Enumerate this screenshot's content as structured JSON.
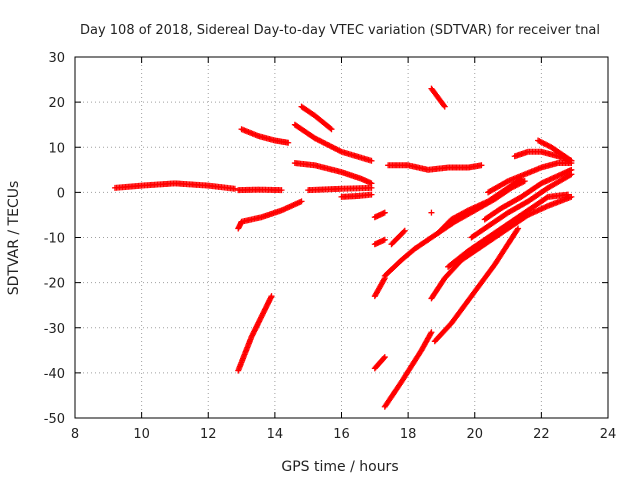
{
  "chart_data": {
    "type": "scatter",
    "title": "Day 108 of 2018, Sidereal Day-to-day VTEC variation (SDTVAR) for receiver tnal",
    "xlabel": "GPS time / hours",
    "ylabel": "SDTVAR / TECUs",
    "xlim": [
      8,
      24
    ],
    "ylim": [
      -50,
      30
    ],
    "xticks": [
      "8",
      "10",
      "12",
      "14",
      "16",
      "18",
      "20",
      "22",
      "24"
    ],
    "yticks": [
      "30",
      "20",
      "10",
      "0",
      "-10",
      "-20",
      "-30",
      "-40",
      "-50"
    ],
    "grid": true,
    "legend": "none",
    "marker": "plus",
    "color": "#ff0000",
    "series": [
      {
        "points": [
          [
            9.2,
            1.0
          ],
          [
            10.0,
            1.5
          ],
          [
            11.0,
            2.0
          ],
          [
            12.0,
            1.5
          ],
          [
            12.8,
            0.8
          ]
        ]
      },
      {
        "points": [
          [
            12.9,
            0.5
          ],
          [
            13.5,
            0.6
          ],
          [
            14.2,
            0.5
          ]
        ]
      },
      {
        "points": [
          [
            12.9,
            -8.0
          ],
          [
            13.0,
            -6.5
          ],
          [
            13.6,
            -5.5
          ],
          [
            14.2,
            -4.0
          ],
          [
            14.8,
            -2.0
          ]
        ]
      },
      {
        "points": [
          [
            13.0,
            14.0
          ],
          [
            13.5,
            12.5
          ],
          [
            14.0,
            11.5
          ],
          [
            14.4,
            11.0
          ]
        ]
      },
      {
        "points": [
          [
            14.6,
            15.0
          ],
          [
            15.2,
            12.0
          ],
          [
            16.0,
            9.0
          ],
          [
            16.9,
            7.0
          ]
        ]
      },
      {
        "points": [
          [
            14.8,
            19.0
          ],
          [
            15.2,
            17.0
          ],
          [
            15.7,
            14.0
          ]
        ]
      },
      {
        "points": [
          [
            14.6,
            6.5
          ],
          [
            15.2,
            6.0
          ],
          [
            16.0,
            4.5
          ],
          [
            16.6,
            3.0
          ],
          [
            16.9,
            2.0
          ]
        ]
      },
      {
        "points": [
          [
            15.0,
            0.5
          ],
          [
            16.0,
            0.8
          ],
          [
            16.9,
            1.0
          ]
        ]
      },
      {
        "points": [
          [
            16.0,
            -1.0
          ],
          [
            16.5,
            -0.8
          ],
          [
            16.9,
            -0.5
          ]
        ]
      },
      {
        "points": [
          [
            17.4,
            6.0
          ],
          [
            18.0,
            6.0
          ],
          [
            18.6,
            5.0
          ],
          [
            19.2,
            5.5
          ],
          [
            19.8,
            5.5
          ],
          [
            20.2,
            6.0
          ]
        ]
      },
      {
        "points": [
          [
            18.7,
            23.0
          ],
          [
            19.1,
            19.0
          ]
        ]
      },
      {
        "points": [
          [
            12.9,
            -39.5
          ],
          [
            13.3,
            -32.0
          ],
          [
            13.7,
            -26.0
          ],
          [
            13.9,
            -23.0
          ]
        ]
      },
      {
        "points": [
          [
            17.0,
            -23.0
          ],
          [
            17.3,
            -19.0
          ]
        ]
      },
      {
        "points": [
          [
            17.0,
            -39.0
          ],
          [
            17.3,
            -36.5
          ]
        ]
      },
      {
        "points": [
          [
            17.0,
            -5.5
          ],
          [
            17.3,
            -4.5
          ]
        ]
      },
      {
        "points": [
          [
            17.0,
            -11.5
          ],
          [
            17.3,
            -10.5
          ]
        ]
      },
      {
        "points": [
          [
            17.5,
            -11.5
          ],
          [
            17.9,
            -8.5
          ]
        ]
      },
      {
        "points": [
          [
            17.3,
            -47.5
          ],
          [
            17.8,
            -42.0
          ],
          [
            18.4,
            -35.0
          ],
          [
            18.7,
            -31.0
          ]
        ]
      },
      {
        "points": [
          [
            17.3,
            -18.5
          ],
          [
            17.8,
            -15.0
          ],
          [
            18.2,
            -12.5
          ],
          [
            18.6,
            -10.5
          ]
        ]
      },
      {
        "points": [
          [
            18.6,
            -10.5
          ],
          [
            19.0,
            -8.5
          ],
          [
            19.4,
            -6.5
          ],
          [
            20.0,
            -4.0
          ],
          [
            20.6,
            -1.5
          ],
          [
            21.1,
            1.0
          ],
          [
            21.5,
            2.5
          ]
        ]
      },
      {
        "points": [
          [
            18.9,
            -9.0
          ],
          [
            19.3,
            -6.0
          ],
          [
            19.8,
            -4.0
          ],
          [
            20.4,
            -2.0
          ],
          [
            21.0,
            1.0
          ],
          [
            21.4,
            3.0
          ]
        ]
      },
      {
        "points": [
          [
            18.7,
            -23.5
          ],
          [
            19.1,
            -19.0
          ],
          [
            19.6,
            -15.0
          ],
          [
            20.2,
            -12.0
          ],
          [
            21.0,
            -8.0
          ],
          [
            21.6,
            -5.0
          ],
          [
            22.2,
            -3.0
          ],
          [
            22.9,
            -1.0
          ]
        ]
      },
      {
        "points": [
          [
            18.8,
            -33.0
          ],
          [
            19.3,
            -29.0
          ],
          [
            19.9,
            -23.0
          ],
          [
            20.6,
            -16.0
          ],
          [
            21.3,
            -8.0
          ]
        ]
      },
      {
        "points": [
          [
            19.2,
            -16.5
          ],
          [
            19.8,
            -13.0
          ],
          [
            20.4,
            -10.0
          ],
          [
            21.0,
            -7.0
          ],
          [
            21.6,
            -4.0
          ],
          [
            22.2,
            -1.0
          ],
          [
            22.8,
            -0.5
          ]
        ]
      },
      {
        "points": [
          [
            19.9,
            -10.0
          ],
          [
            20.5,
            -7.0
          ],
          [
            21.0,
            -4.5
          ],
          [
            21.6,
            -2.0
          ],
          [
            22.2,
            1.0
          ],
          [
            22.9,
            4.0
          ]
        ]
      },
      {
        "points": [
          [
            20.3,
            -6.0
          ],
          [
            20.8,
            -3.5
          ],
          [
            21.4,
            -1.0
          ],
          [
            22.0,
            2.0
          ],
          [
            22.6,
            4.0
          ],
          [
            22.9,
            5.0
          ]
        ]
      },
      {
        "points": [
          [
            20.4,
            0.0
          ],
          [
            21.0,
            2.5
          ],
          [
            21.5,
            4.0
          ],
          [
            22.0,
            5.5
          ],
          [
            22.5,
            6.5
          ],
          [
            22.9,
            6.5
          ]
        ]
      },
      {
        "points": [
          [
            21.2,
            8.0
          ],
          [
            21.6,
            9.0
          ],
          [
            22.0,
            9.0
          ],
          [
            22.5,
            8.0
          ],
          [
            22.9,
            7.0
          ]
        ]
      },
      {
        "points": [
          [
            21.9,
            11.5
          ],
          [
            22.3,
            10.0
          ],
          [
            22.9,
            7.0
          ]
        ]
      },
      {
        "points": [
          [
            18.7,
            -4.5
          ]
        ]
      }
    ]
  }
}
